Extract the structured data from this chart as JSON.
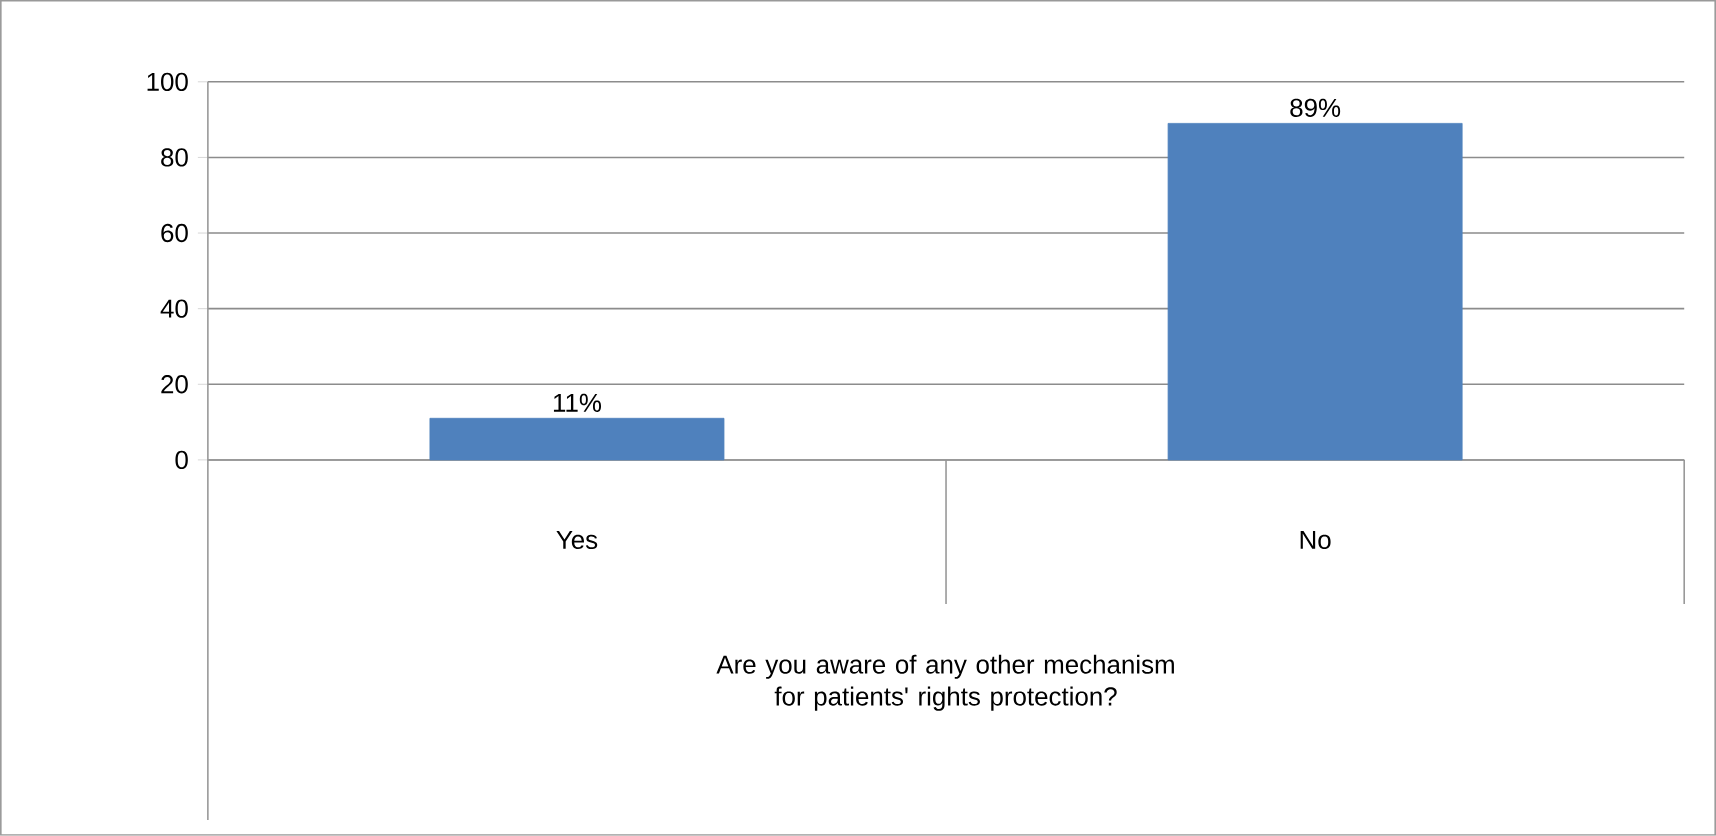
{
  "chart_data": {
    "type": "bar",
    "xlabel": "Are you aware of any other mechanism for patients' rights protection?",
    "categories": [
      "Yes",
      "No"
    ],
    "values": [
      11,
      89
    ],
    "value_labels": [
      "11%",
      "89%"
    ],
    "color": "#4f81bd",
    "ylim": [
      0,
      100
    ],
    "yticks": [
      0,
      20,
      40,
      60,
      80,
      100
    ],
    "grid": "y"
  }
}
